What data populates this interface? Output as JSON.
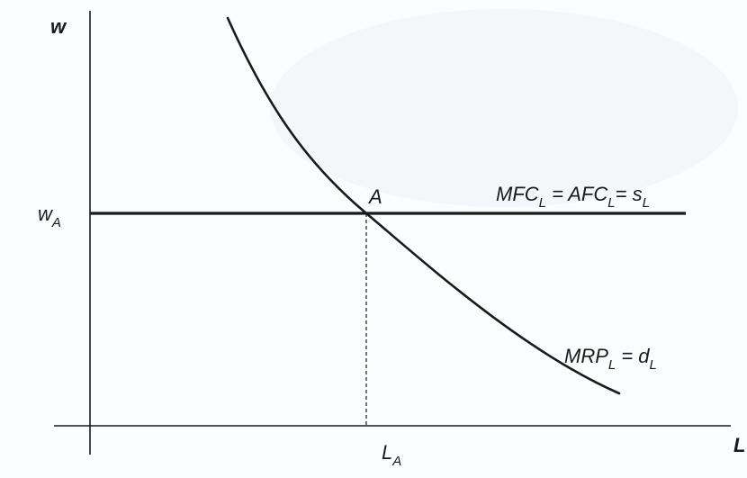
{
  "axes": {
    "y_label": "w",
    "x_label": "L"
  },
  "points": {
    "equilibrium": "A",
    "wage": {
      "base": "w",
      "sub": "A"
    },
    "labor": {
      "base": "L",
      "sub": "A"
    }
  },
  "curves": {
    "supply": {
      "parts": [
        {
          "t": "MFC"
        },
        {
          "t": "L",
          "sub": true
        },
        {
          "t": " = AFC"
        },
        {
          "t": "L",
          "sub": true
        },
        {
          "t": "= s"
        },
        {
          "t": "L",
          "sub": true
        }
      ]
    },
    "demand": {
      "parts": [
        {
          "t": "MRP"
        },
        {
          "t": "L",
          "sub": true
        },
        {
          "t": " = d"
        },
        {
          "t": "L",
          "sub": true
        }
      ]
    }
  },
  "colors": {
    "ink": "#1a1a1a",
    "background": "#fbfcfd"
  }
}
